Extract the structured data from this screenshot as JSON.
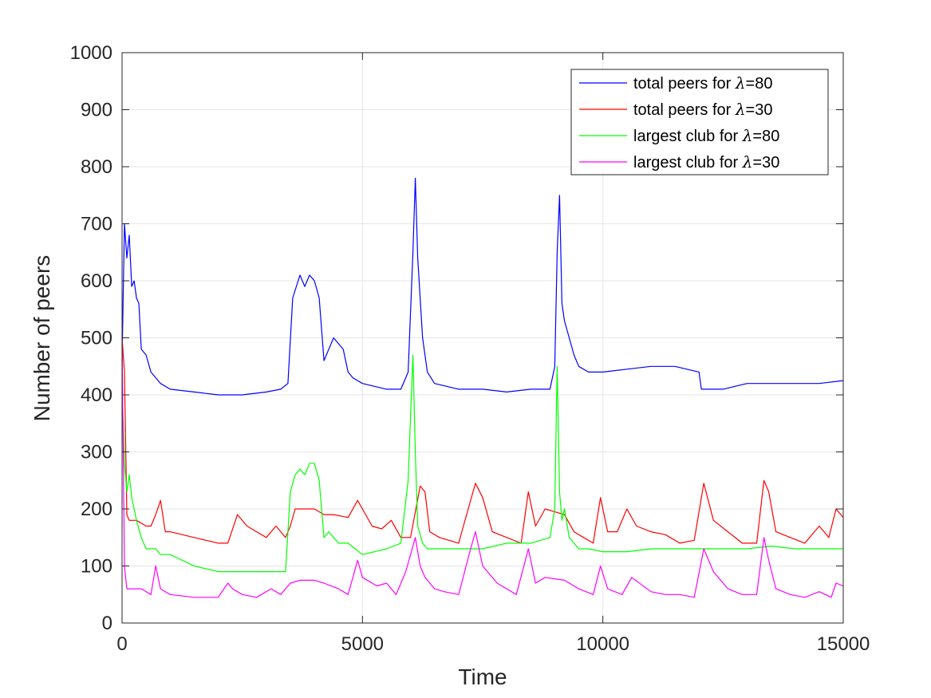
{
  "chart_data": {
    "type": "line",
    "title": "",
    "xlabel": "Time",
    "ylabel": "Number of peers",
    "xlim": [
      0,
      15000
    ],
    "ylim": [
      0,
      1000
    ],
    "xticks": [
      0,
      5000,
      10000,
      15000
    ],
    "yticks": [
      0,
      100,
      200,
      300,
      400,
      500,
      600,
      700,
      800,
      900,
      1000
    ],
    "grid": true,
    "legend_position": "top-right",
    "series": [
      {
        "name": "total peers for λ=80",
        "legend_prefix": "total peers for ",
        "legend_symbol": "λ",
        "legend_suffix": "=80",
        "color": "#0000ff",
        "x": [
          0,
          50,
          100,
          150,
          200,
          250,
          300,
          350,
          400,
          500,
          600,
          800,
          1000,
          1500,
          2000,
          2500,
          3000,
          3300,
          3450,
          3550,
          3700,
          3800,
          3900,
          4000,
          4100,
          4200,
          4300,
          4400,
          4500,
          4600,
          4700,
          4800,
          5000,
          5500,
          5800,
          5950,
          6050,
          6100,
          6150,
          6250,
          6350,
          6500,
          7000,
          7500,
          8000,
          8500,
          8900,
          9000,
          9050,
          9100,
          9150,
          9200,
          9300,
          9400,
          9500,
          9700,
          10000,
          10500,
          11000,
          11500,
          12000,
          12050,
          12500,
          13000,
          13500,
          14000,
          14500,
          15000
        ],
        "y": [
          460,
          700,
          640,
          680,
          590,
          600,
          570,
          560,
          480,
          470,
          440,
          420,
          410,
          405,
          400,
          400,
          405,
          410,
          420,
          570,
          610,
          590,
          610,
          600,
          570,
          460,
          480,
          500,
          490,
          480,
          440,
          430,
          420,
          410,
          410,
          440,
          650,
          780,
          640,
          500,
          440,
          420,
          410,
          410,
          405,
          410,
          410,
          450,
          650,
          750,
          560,
          530,
          500,
          470,
          450,
          440,
          440,
          445,
          450,
          450,
          440,
          410,
          410,
          420,
          420,
          420,
          420,
          425
        ]
      },
      {
        "name": "total peers for λ=30",
        "legend_prefix": "total peers for ",
        "legend_symbol": "λ",
        "legend_suffix": "=30",
        "color": "#ff0000",
        "x": [
          0,
          50,
          100,
          150,
          300,
          500,
          600,
          700,
          800,
          900,
          1000,
          1500,
          2000,
          2200,
          2400,
          2600,
          2800,
          3000,
          3200,
          3400,
          3500,
          3600,
          4000,
          4200,
          4400,
          4700,
          4900,
          5000,
          5200,
          5400,
          5600,
          5800,
          6000,
          6200,
          6300,
          6400,
          6600,
          6800,
          7000,
          7200,
          7350,
          7500,
          7700,
          8000,
          8300,
          8450,
          8600,
          8800,
          9000,
          9200,
          9400,
          9600,
          9800,
          9950,
          10100,
          10300,
          10500,
          10700,
          11000,
          11300,
          11600,
          11900,
          12100,
          12300,
          12600,
          12900,
          13200,
          13350,
          13450,
          13600,
          13900,
          14200,
          14500,
          14700,
          14850,
          15000
        ],
        "y": [
          500,
          440,
          190,
          180,
          180,
          170,
          170,
          190,
          215,
          160,
          160,
          150,
          140,
          140,
          190,
          170,
          160,
          150,
          170,
          150,
          170,
          200,
          200,
          190,
          190,
          185,
          215,
          200,
          170,
          165,
          180,
          150,
          150,
          240,
          230,
          160,
          150,
          145,
          140,
          200,
          245,
          220,
          160,
          150,
          140,
          230,
          170,
          200,
          195,
          190,
          160,
          150,
          140,
          220,
          160,
          160,
          200,
          170,
          160,
          155,
          140,
          145,
          245,
          180,
          160,
          140,
          140,
          250,
          230,
          160,
          150,
          140,
          170,
          150,
          200,
          185
        ]
      },
      {
        "name": "largest club for λ=80",
        "legend_prefix": "largest club for ",
        "legend_symbol": "λ",
        "legend_suffix": "=80",
        "color": "#00ff00",
        "x": [
          0,
          50,
          100,
          150,
          200,
          300,
          400,
          500,
          700,
          800,
          1000,
          1500,
          2000,
          2500,
          3000,
          3400,
          3500,
          3600,
          3700,
          3800,
          3900,
          4000,
          4100,
          4200,
          4300,
          4500,
          4700,
          5000,
          5500,
          5800,
          5950,
          6050,
          6100,
          6150,
          6250,
          6350,
          6500,
          7000,
          7500,
          8000,
          8500,
          8900,
          9000,
          9050,
          9100,
          9150,
          9200,
          9300,
          9500,
          9700,
          10000,
          10500,
          11000,
          11500,
          12000,
          12500,
          13000,
          13500,
          14000,
          14500,
          15000
        ],
        "y": [
          420,
          280,
          230,
          260,
          220,
          180,
          150,
          130,
          130,
          120,
          120,
          100,
          90,
          90,
          90,
          90,
          230,
          260,
          270,
          260,
          280,
          280,
          250,
          150,
          160,
          140,
          140,
          120,
          130,
          140,
          250,
          470,
          300,
          170,
          140,
          130,
          130,
          130,
          130,
          140,
          140,
          150,
          200,
          450,
          230,
          180,
          200,
          150,
          130,
          130,
          125,
          125,
          130,
          130,
          130,
          130,
          130,
          135,
          130,
          130,
          130
        ]
      },
      {
        "name": "largest club for λ=30",
        "legend_prefix": "largest club for ",
        "legend_symbol": "λ",
        "legend_suffix": "=30",
        "color": "#ff00ff",
        "x": [
          0,
          50,
          100,
          200,
          400,
          600,
          700,
          800,
          1000,
          1500,
          2000,
          2200,
          2300,
          2500,
          2800,
          3100,
          3300,
          3500,
          3700,
          4000,
          4200,
          4500,
          4700,
          4900,
          5000,
          5300,
          5500,
          5700,
          5900,
          6100,
          6200,
          6300,
          6500,
          6700,
          7000,
          7250,
          7350,
          7500,
          7800,
          8200,
          8450,
          8600,
          8800,
          9200,
          9500,
          9800,
          9950,
          10100,
          10400,
          10600,
          11000,
          11300,
          11600,
          11900,
          12100,
          12300,
          12600,
          12900,
          13200,
          13350,
          13450,
          13600,
          13900,
          14200,
          14500,
          14750,
          14850,
          15000
        ],
        "y": [
          490,
          100,
          60,
          60,
          60,
          50,
          100,
          60,
          50,
          45,
          45,
          70,
          60,
          50,
          45,
          60,
          50,
          70,
          75,
          75,
          70,
          60,
          50,
          110,
          80,
          65,
          70,
          50,
          90,
          150,
          100,
          80,
          60,
          55,
          50,
          130,
          160,
          100,
          70,
          50,
          130,
          70,
          80,
          75,
          60,
          50,
          100,
          60,
          50,
          80,
          55,
          50,
          50,
          45,
          130,
          90,
          60,
          50,
          50,
          150,
          110,
          60,
          50,
          45,
          55,
          45,
          70,
          65
        ]
      }
    ]
  }
}
